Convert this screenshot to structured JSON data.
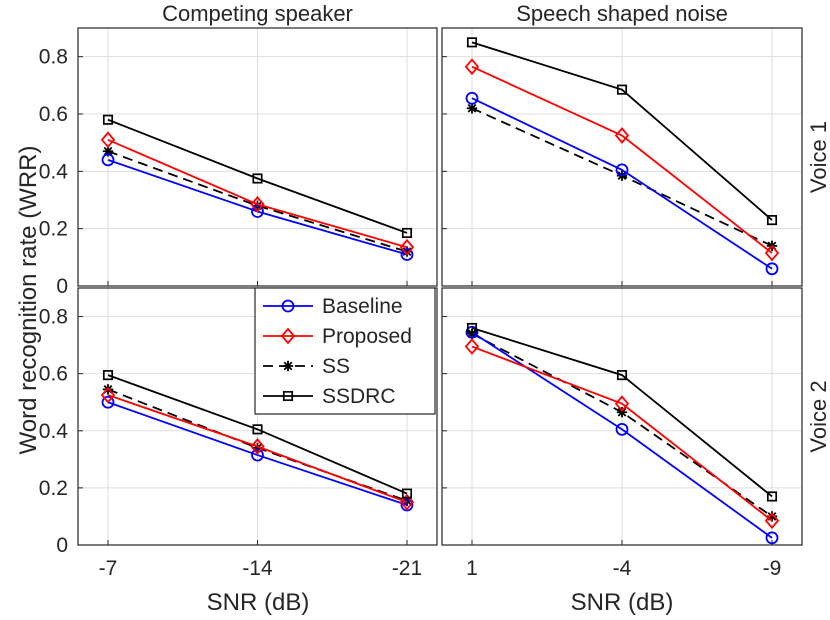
{
  "chart_data": {
    "type": "line",
    "ylabel": "Word recognition rate (WRR)",
    "xlabel": "SNR (dB)",
    "ylim": [
      0,
      0.9
    ],
    "yticks": [
      "0",
      "0.2",
      "0.4",
      "0.6",
      "0.8"
    ],
    "columns": [
      {
        "title": "Competing speaker",
        "x": [
          "-7",
          "-14",
          "-21"
        ]
      },
      {
        "title": "Speech shaped noise",
        "x": [
          "1",
          "-4",
          "-9"
        ]
      }
    ],
    "rows": [
      {
        "label": "Voice 1"
      },
      {
        "label": "Voice 2"
      }
    ],
    "series_styles": [
      {
        "name": "Baseline",
        "color": "#0000ff",
        "marker": "circle",
        "dash": "solid"
      },
      {
        "name": "Proposed",
        "color": "#ff0000",
        "marker": "diamond",
        "dash": "solid"
      },
      {
        "name": "SS",
        "color": "#000000",
        "marker": "asterisk",
        "dash": "dashed"
      },
      {
        "name": "SSDRC",
        "color": "#000000",
        "marker": "square",
        "dash": "solid"
      }
    ],
    "legend_location": "top-right of bottom-left panel",
    "panels": [
      {
        "row": 0,
        "col": 0,
        "series": [
          {
            "name": "Baseline",
            "values": [
              0.44,
              0.26,
              0.11
            ]
          },
          {
            "name": "Proposed",
            "values": [
              0.51,
              0.285,
              0.135
            ]
          },
          {
            "name": "SS",
            "values": [
              0.47,
              0.28,
              0.12
            ]
          },
          {
            "name": "SSDRC",
            "values": [
              0.58,
              0.375,
              0.185
            ]
          }
        ]
      },
      {
        "row": 0,
        "col": 1,
        "series": [
          {
            "name": "Baseline",
            "values": [
              0.655,
              0.405,
              0.06
            ]
          },
          {
            "name": "Proposed",
            "values": [
              0.765,
              0.525,
              0.115
            ]
          },
          {
            "name": "SS",
            "values": [
              0.62,
              0.385,
              0.14
            ]
          },
          {
            "name": "SSDRC",
            "values": [
              0.85,
              0.685,
              0.23
            ]
          }
        ]
      },
      {
        "row": 1,
        "col": 0,
        "series": [
          {
            "name": "Baseline",
            "values": [
              0.5,
              0.315,
              0.14
            ]
          },
          {
            "name": "Proposed",
            "values": [
              0.525,
              0.345,
              0.15
            ]
          },
          {
            "name": "SS",
            "values": [
              0.545,
              0.34,
              0.155
            ]
          },
          {
            "name": "SSDRC",
            "values": [
              0.595,
              0.405,
              0.18
            ]
          }
        ]
      },
      {
        "row": 1,
        "col": 1,
        "series": [
          {
            "name": "Baseline",
            "values": [
              0.745,
              0.405,
              0.025
            ]
          },
          {
            "name": "Proposed",
            "values": [
              0.695,
              0.495,
              0.085
            ]
          },
          {
            "name": "SS",
            "values": [
              0.74,
              0.465,
              0.1
            ]
          },
          {
            "name": "SSDRC",
            "values": [
              0.76,
              0.595,
              0.17
            ]
          }
        ]
      }
    ]
  }
}
